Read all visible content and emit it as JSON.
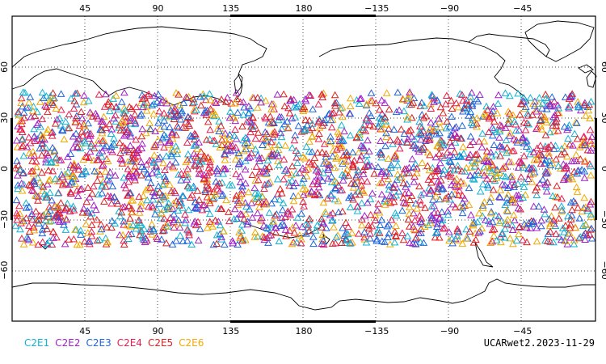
{
  "map": {
    "lon_ticks": [
      "45",
      "90",
      "135",
      "180",
      "−135",
      "−90",
      "−45"
    ],
    "lat_ticks": [
      "60",
      "30",
      "0",
      "−30",
      "−60"
    ],
    "lon_range": [
      0,
      360
    ],
    "lat_range": [
      -90,
      90
    ],
    "grid": true,
    "marker": "open-triangle",
    "obs_lat_band": [
      -45,
      45
    ]
  },
  "legend": [
    {
      "label": "C2E1",
      "color": "#10b4d2"
    },
    {
      "label": "C2E2",
      "color": "#a020c8"
    },
    {
      "label": "C2E3",
      "color": "#1e64dc"
    },
    {
      "label": "C2E4",
      "color": "#e61e50"
    },
    {
      "label": "C2E5",
      "color": "#dc2020"
    },
    {
      "label": "C2E6",
      "color": "#f0aa00"
    }
  ],
  "caption": "UCARwet2.2023-11-29"
}
